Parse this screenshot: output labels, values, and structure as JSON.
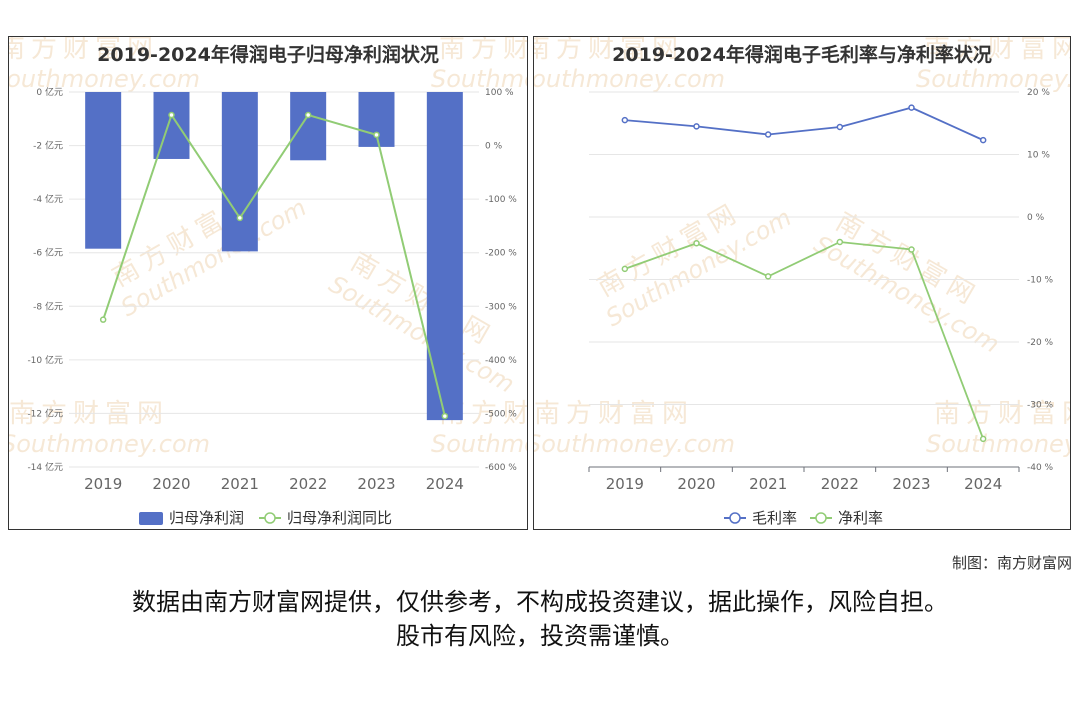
{
  "chart_data": [
    {
      "type": "bar",
      "title": "2019-2024年得润电子归母净利润状况",
      "categories": [
        "2019",
        "2020",
        "2021",
        "2022",
        "2023",
        "2024"
      ],
      "series": [
        {
          "name": "归母净利润",
          "type": "bar",
          "axis": "left",
          "color": "#5470c6",
          "values": [
            -5.85,
            -2.5,
            -5.95,
            -2.55,
            -2.05,
            -12.25
          ]
        },
        {
          "name": "归母净利润同比",
          "type": "line",
          "axis": "right",
          "color": "#91cc75",
          "values": [
            -325,
            57,
            -135,
            57,
            20,
            -505
          ]
        }
      ],
      "y_left": {
        "ticks": [
          "0 亿元",
          "-2 亿元",
          "-4 亿元",
          "-6 亿元",
          "-8 亿元",
          "-10 亿元",
          "-12 亿元",
          "-14 亿元"
        ],
        "ylim": [
          -14,
          0
        ]
      },
      "y_right": {
        "ticks": [
          "100 %",
          "0 %",
          "-100 %",
          "-200 %",
          "-300 %",
          "-400 %",
          "-500 %",
          "-600 %"
        ],
        "ylim": [
          -600,
          100
        ]
      },
      "legend": "bottom",
      "grid": true
    },
    {
      "type": "line",
      "title": "2019-2024年得润电子毛利率与净利率状况",
      "categories": [
        "2019",
        "2020",
        "2021",
        "2022",
        "2023",
        "2024"
      ],
      "series": [
        {
          "name": "毛利率",
          "color": "#5470c6",
          "values": [
            15.5,
            14.5,
            13.2,
            14.4,
            17.5,
            12.3
          ]
        },
        {
          "name": "净利率",
          "color": "#91cc75",
          "values": [
            -8.3,
            -4.2,
            -9.5,
            -4.0,
            -5.2,
            -35.5
          ]
        }
      ],
      "y_right": {
        "ticks": [
          "20 %",
          "10 %",
          "0 %",
          "-10 %",
          "-20 %",
          "-30 %",
          "-40 %"
        ],
        "ylim": [
          -40,
          20
        ]
      },
      "legend": "bottom",
      "grid": true
    }
  ],
  "watermark": {
    "cn": "南方财富网",
    "en": "Southmoney.com"
  },
  "footer": {
    "credit": "制图：南方财富网",
    "disclaimer_line1": "数据由南方财富网提供，仅供参考，不构成投资建议，据此操作，风险自担。",
    "disclaimer_line2": "股市有风险，投资需谨慎。"
  }
}
